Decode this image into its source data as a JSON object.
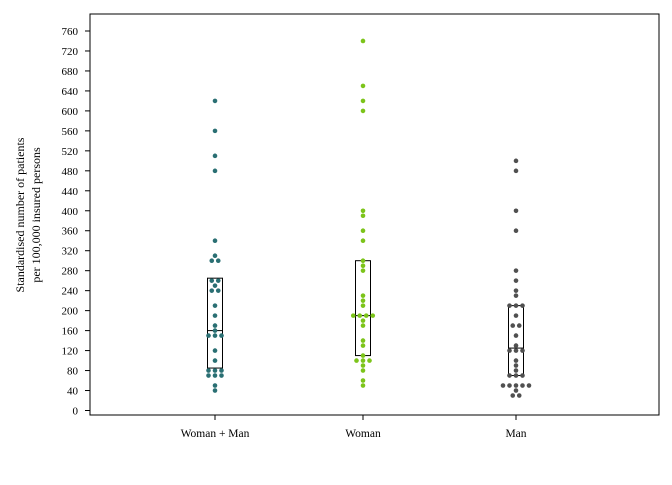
{
  "chart_data": {
    "type": "scatter",
    "subtype": "dot-plot-with-interquartile-boxes",
    "title": "",
    "xlabel": "",
    "ylabel_lines": [
      "Standardised number of patients",
      "per 100,000 insured persons"
    ],
    "ylim": [
      0,
      760
    ],
    "yticks": [
      0,
      40,
      80,
      120,
      160,
      200,
      240,
      280,
      320,
      360,
      400,
      440,
      480,
      520,
      560,
      600,
      640,
      680,
      720,
      760
    ],
    "grid": false,
    "legend": "none",
    "categories": [
      "Woman + Man",
      "Woman",
      "Man"
    ],
    "series": [
      {
        "category": "Woman + Man",
        "color": "#2a6f73",
        "box": {
          "q1": 85,
          "median": 160,
          "q3": 265
        },
        "points": [
          620,
          560,
          510,
          480,
          340,
          310,
          300,
          300,
          260,
          260,
          250,
          240,
          240,
          210,
          190,
          170,
          160,
          150,
          150,
          150,
          120,
          100,
          80,
          80,
          80,
          70,
          70,
          70,
          50,
          40
        ]
      },
      {
        "category": "Woman",
        "color": "#7cc41a",
        "box": {
          "q1": 110,
          "median": 190,
          "q3": 300
        },
        "points": [
          740,
          650,
          620,
          600,
          400,
          390,
          360,
          340,
          300,
          290,
          280,
          230,
          220,
          210,
          190,
          190,
          190,
          190,
          180,
          170,
          140,
          130,
          110,
          100,
          100,
          100,
          90,
          80,
          60,
          50
        ]
      },
      {
        "category": "Man",
        "color": "#505050",
        "box": {
          "q1": 70,
          "median": 125,
          "q3": 210
        },
        "points": [
          500,
          480,
          400,
          360,
          280,
          260,
          240,
          230,
          210,
          210,
          210,
          190,
          170,
          170,
          150,
          130,
          120,
          120,
          120,
          100,
          90,
          80,
          70,
          70,
          70,
          50,
          50,
          50,
          50,
          50,
          40,
          30,
          30
        ]
      }
    ]
  }
}
